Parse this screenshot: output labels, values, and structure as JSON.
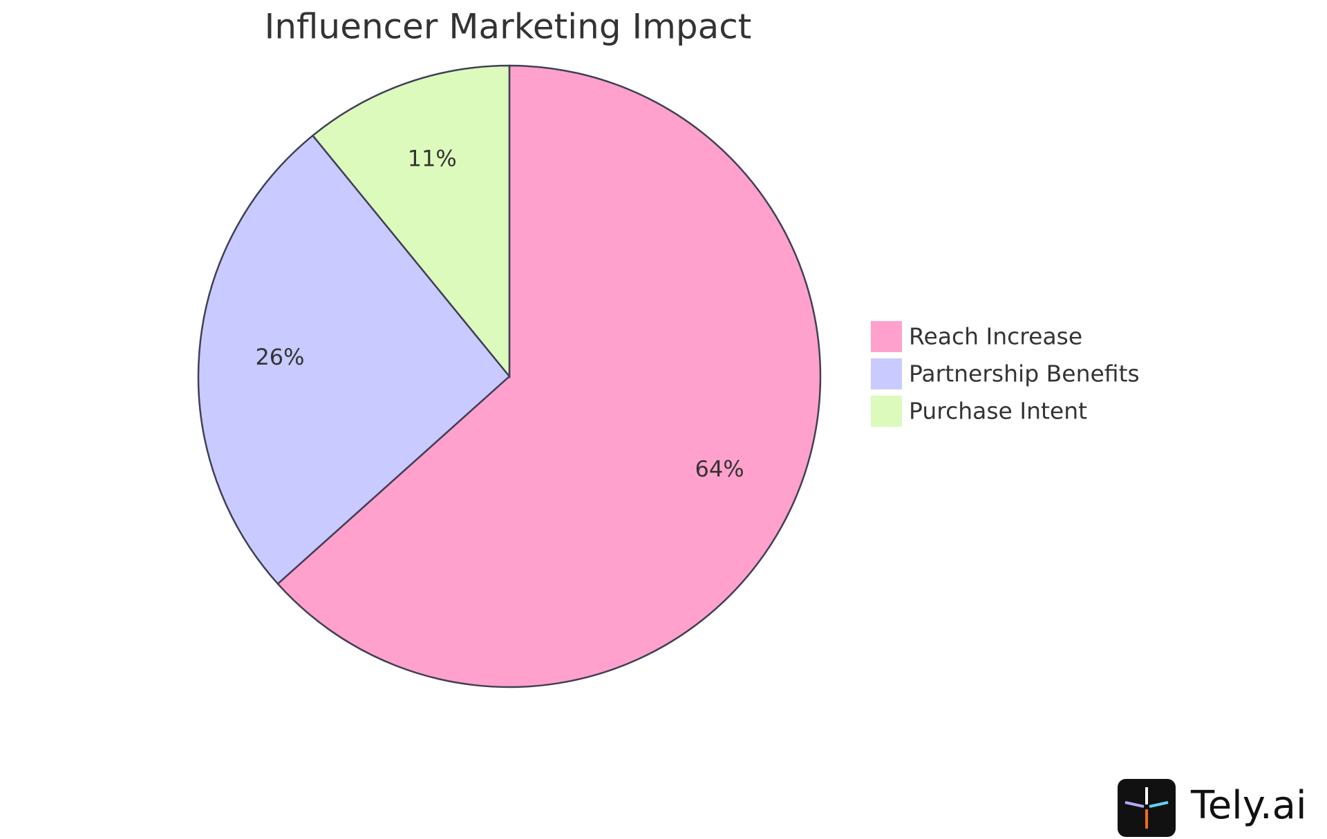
{
  "chart_data": {
    "type": "pie",
    "title": "Influencer Marketing Impact",
    "categories": [
      "Reach Increase",
      "Partnership Benefits",
      "Purchase Intent"
    ],
    "values": [
      64,
      26,
      11
    ],
    "value_labels": [
      "64%",
      "26%",
      "11%"
    ],
    "colors": [
      "#ffa1cc",
      "#c9caff",
      "#dcfabc"
    ],
    "legend": "right"
  },
  "watermark": "Tely.ai"
}
